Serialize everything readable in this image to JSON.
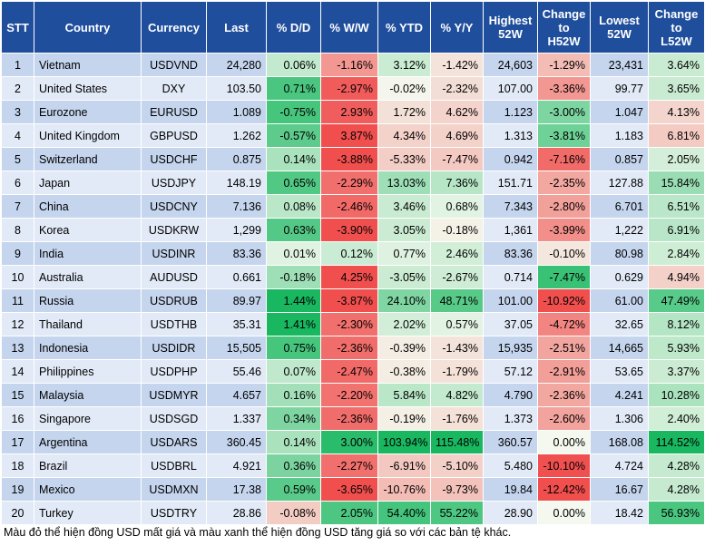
{
  "header": [
    "STT",
    "Country",
    "Currency",
    "Last",
    "% D/D",
    "% W/W",
    "% YTD",
    "% Y/Y",
    "Highest\n52W",
    "Change\nto\nH52W",
    "Lowest\n52W",
    "Change\nto\nL52W"
  ],
  "rows": [
    [
      "1",
      "Vietnam",
      "USDVND",
      "24,280",
      "0.06%",
      "-1.16%",
      "3.12%",
      "-1.42%",
      "24,603",
      "-1.29%",
      "23,431",
      "3.64%"
    ],
    [
      "2",
      "United States",
      "DXY",
      "103.50",
      "0.71%",
      "-2.97%",
      "-0.02%",
      "-2.32%",
      "107.00",
      "-3.36%",
      "99.77",
      "3.65%"
    ],
    [
      "3",
      "Eurozone",
      "EURUSD",
      "1.089",
      "-0.75%",
      "2.93%",
      "1.72%",
      "4.62%",
      "1.123",
      "-3.00%",
      "1.047",
      "4.13%"
    ],
    [
      "4",
      "United Kingdom",
      "GBPUSD",
      "1.262",
      "-0.57%",
      "3.87%",
      "4.34%",
      "4.69%",
      "1.313",
      "-3.81%",
      "1.183",
      "6.81%"
    ],
    [
      "5",
      "Switzerland",
      "USDCHF",
      "0.875",
      "0.14%",
      "-3.88%",
      "-5.33%",
      "-7.47%",
      "0.942",
      "-7.16%",
      "0.857",
      "2.05%"
    ],
    [
      "6",
      "Japan",
      "USDJPY",
      "148.19",
      "0.65%",
      "-2.29%",
      "13.03%",
      "7.36%",
      "151.71",
      "-2.35%",
      "127.88",
      "15.84%"
    ],
    [
      "7",
      "China",
      "USDCNY",
      "7.136",
      "0.08%",
      "-2.46%",
      "3.46%",
      "0.68%",
      "7.343",
      "-2.80%",
      "6.701",
      "6.51%"
    ],
    [
      "8",
      "Korea",
      "USDKRW",
      "1,299",
      "0.63%",
      "-3.90%",
      "3.05%",
      "-0.18%",
      "1,361",
      "-3.99%",
      "1,222",
      "6.91%"
    ],
    [
      "9",
      "India",
      "USDINR",
      "83.36",
      "0.01%",
      "0.12%",
      "0.77%",
      "2.46%",
      "83.36",
      "-0.10%",
      "80.98",
      "2.84%"
    ],
    [
      "10",
      "Australia",
      "AUDUSD",
      "0.661",
      "-0.18%",
      "4.25%",
      "-3.05%",
      "-2.67%",
      "0.714",
      "-7.47%",
      "0.629",
      "4.94%"
    ],
    [
      "11",
      "Russia",
      "USDRUB",
      "89.97",
      "1.44%",
      "-3.87%",
      "24.10%",
      "48.71%",
      "101.00",
      "-10.92%",
      "61.00",
      "47.49%"
    ],
    [
      "12",
      "Thailand",
      "USDTHB",
      "35.31",
      "1.41%",
      "-2.30%",
      "2.02%",
      "0.57%",
      "37.05",
      "-4.72%",
      "32.65",
      "8.12%"
    ],
    [
      "13",
      "Indonesia",
      "USDIDR",
      "15,505",
      "0.75%",
      "-2.36%",
      "-0.39%",
      "-1.43%",
      "15,935",
      "-2.51%",
      "14,665",
      "5.93%"
    ],
    [
      "14",
      "Philippines",
      "USDPHP",
      "55.46",
      "0.07%",
      "-2.47%",
      "-0.38%",
      "-1.79%",
      "57.12",
      "-2.91%",
      "53.65",
      "3.37%"
    ],
    [
      "15",
      "Malaysia",
      "USDMYR",
      "4.657",
      "0.16%",
      "-2.20%",
      "5.84%",
      "4.82%",
      "4.790",
      "-2.36%",
      "4.241",
      "10.28%"
    ],
    [
      "16",
      "Singapore",
      "USDSGD",
      "1.337",
      "0.34%",
      "-2.36%",
      "-0.19%",
      "-1.76%",
      "1.373",
      "-2.60%",
      "1.306",
      "2.40%"
    ],
    [
      "17",
      "Argentina",
      "USDARS",
      "360.45",
      "0.14%",
      "3.00%",
      "103.94%",
      "115.48%",
      "360.57",
      "0.00%",
      "168.08",
      "114.52%"
    ],
    [
      "18",
      "Brazil",
      "USDBRL",
      "4.921",
      "0.36%",
      "-2.27%",
      "-6.91%",
      "-5.10%",
      "5.480",
      "-10.10%",
      "4.724",
      "4.28%"
    ],
    [
      "19",
      "Mexico",
      "USDMXN",
      "17.38",
      "0.59%",
      "-3.65%",
      "-10.76%",
      "-9.73%",
      "19.84",
      "-12.42%",
      "16.67",
      "4.28%"
    ],
    [
      "20",
      "Turkey",
      "USDTRY",
      "28.86",
      "-0.08%",
      "2.05%",
      "54.40%",
      "55.22%",
      "28.90",
      "0.00%",
      "18.42",
      "56.93%"
    ]
  ],
  "footnote": "Màu đỏ thể hiện đồng USD mất giá và màu xanh thể hiện đồng USD tăng giá so với các bản tệ khác.",
  "colors": {
    "header": "#1f4e9c",
    "stripe_odd": "#c5d5ee",
    "stripe_even": "#e2eaf7",
    "up": "#00b050",
    "down": "#f03c3c"
  }
}
